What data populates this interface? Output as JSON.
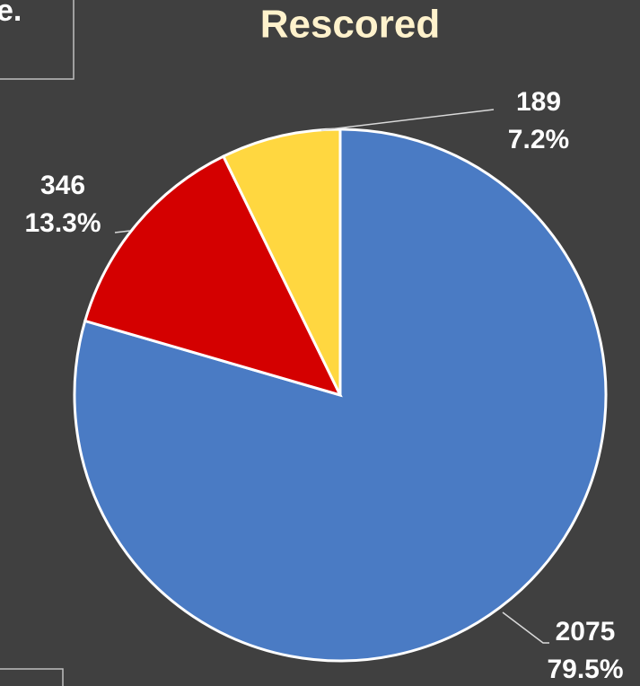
{
  "fragment": "e.",
  "chart_data": {
    "type": "pie",
    "title": "Rescored",
    "categories": [
      null,
      null,
      null
    ],
    "values": [
      2075,
      346,
      189
    ],
    "percent_labels": [
      "79.5%",
      "13.3%",
      "7.2%"
    ],
    "colors": [
      "#4a7bc4",
      "#d40000",
      "#ffd740"
    ]
  }
}
